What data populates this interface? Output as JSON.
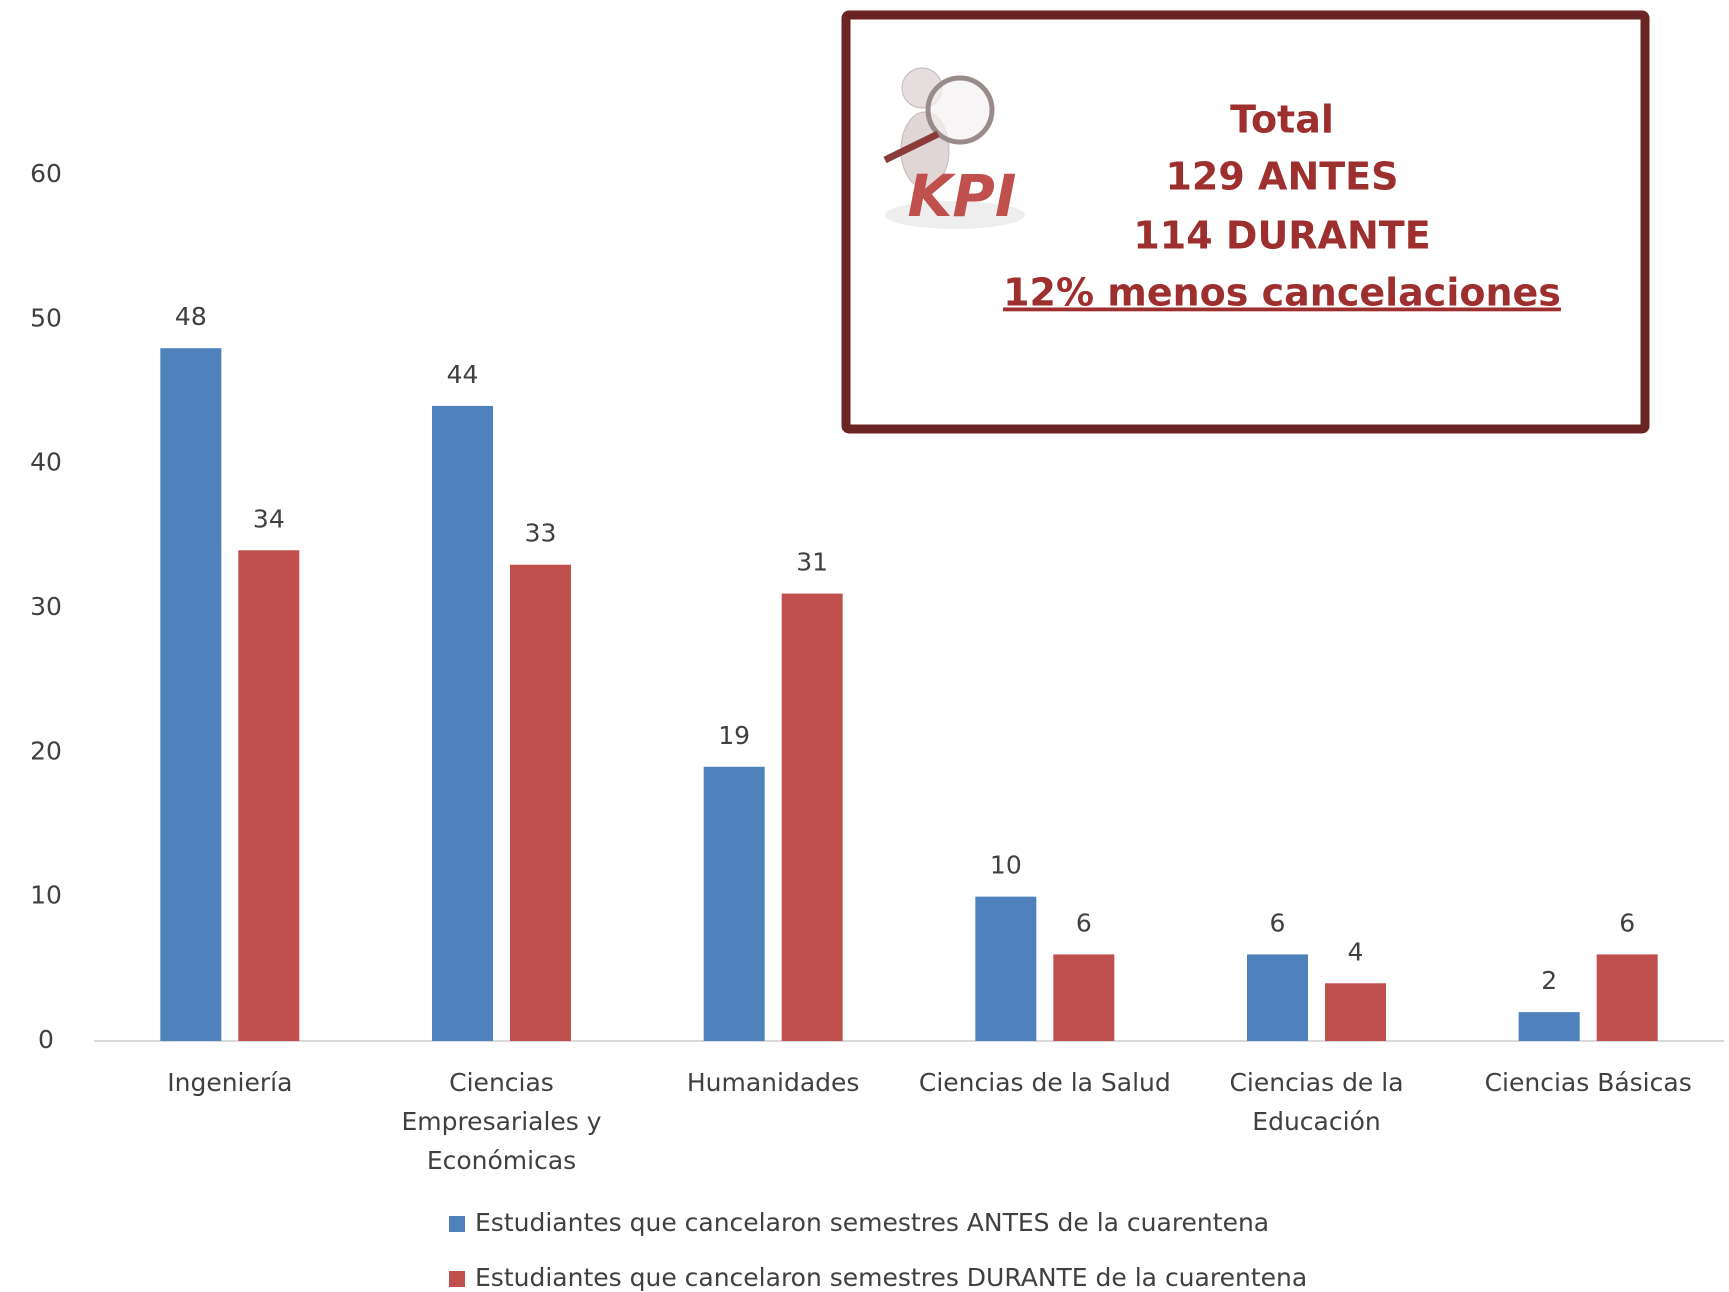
{
  "chart_data": {
    "type": "bar",
    "categories": [
      "Ingeniería",
      "Ciencias Empresariales y Económicas",
      "Humanidades",
      "Ciencias de la Salud",
      "Ciencias de la Educación",
      "Ciencias Básicas"
    ],
    "series": [
      {
        "name": "Estudiantes que cancelaron semestres ANTES de la cuarentena",
        "color": "#4f81bd",
        "values": [
          48,
          44,
          19,
          10,
          6,
          2
        ]
      },
      {
        "name": "Estudiantes que cancelaron semestres DURANTE de la cuarentena",
        "color": "#c0504d",
        "values": [
          34,
          33,
          31,
          6,
          4,
          6
        ]
      }
    ],
    "ylim": [
      0,
      60
    ],
    "yticks": [
      0,
      10,
      20,
      30,
      40,
      50,
      60
    ],
    "grid": false,
    "legend": "bottom"
  },
  "kpi_box": {
    "icon_text": "KPI",
    "lines": [
      "Total",
      "129 ANTES",
      "114 DURANTE",
      "12% menos cancelaciones"
    ]
  }
}
